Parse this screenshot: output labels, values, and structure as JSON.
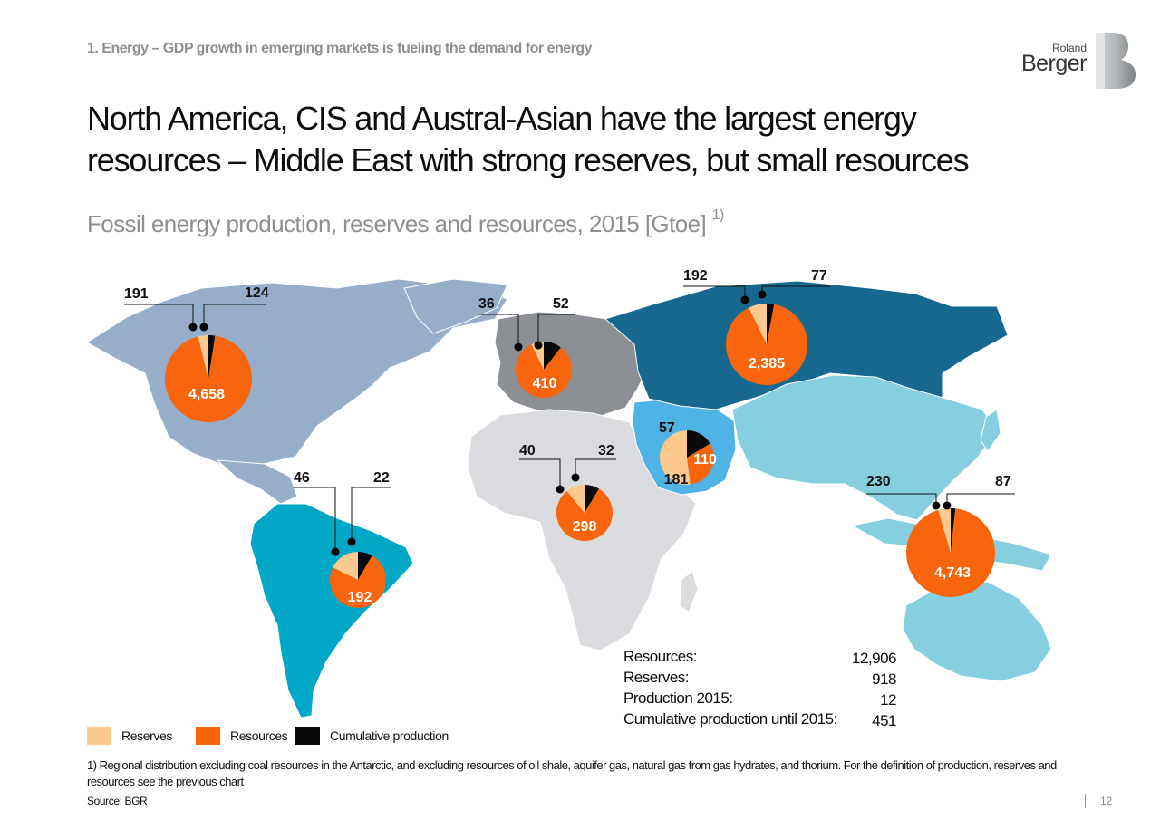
{
  "header": {
    "breadcrumb": "1. Energy – GDP growth in emerging markets is fueling the demand for energy",
    "logo": {
      "line1": "Roland",
      "line2": "Berger"
    },
    "title_line1": "North America, CIS and Austral-Asian have the largest energy",
    "title_line2": "resources – Middle East with strong reserves, but small resources",
    "subtitle": "Fossil energy production, reserves and resources, 2015 [Gtoe]",
    "subtitle_note": "1)"
  },
  "colors": {
    "reserves": "#FBC88D",
    "resources": "#F9650D",
    "cumulative": "#0A0A0A",
    "north_america": "#97AECB",
    "latin_america": "#00A7C6",
    "europe": "#8C8F94",
    "africa": "#D9DBDE",
    "middle_east": "#4FB3E6",
    "cis": "#16688F",
    "austral_asia": "#86CFE1"
  },
  "chart_data": {
    "type": "pie",
    "unit": "Gtoe",
    "series_names": [
      "Reserves",
      "Resources",
      "Cumulative production"
    ],
    "regions": [
      {
        "id": "north-america",
        "reserves": 191,
        "resources": 4658,
        "cumulative": 124
      },
      {
        "id": "latin-america",
        "reserves": 46,
        "resources": 192,
        "cumulative": 22
      },
      {
        "id": "europe",
        "reserves": 36,
        "resources": 410,
        "cumulative": 52
      },
      {
        "id": "africa",
        "reserves": 40,
        "resources": 298,
        "cumulative": 32
      },
      {
        "id": "middle-east",
        "reserves": 181,
        "resources": 110,
        "cumulative": 57
      },
      {
        "id": "cis",
        "reserves": 192,
        "resources": 2385,
        "cumulative": 77
      },
      {
        "id": "austral-asia",
        "reserves": 230,
        "resources": 4743,
        "cumulative": 87
      }
    ]
  },
  "legend": {
    "reserves": "Reserves",
    "resources": "Resources",
    "cumulative": "Cumulative production"
  },
  "totals": {
    "resources_label": "Resources:",
    "resources_value": "12,906",
    "reserves_label": "Reserves:",
    "reserves_value": "918",
    "production_label": "Production 2015:",
    "production_value": "12",
    "cumulative_label": "Cumulative production until 2015:",
    "cumulative_value": "451"
  },
  "footnote": "1) Regional distribution excluding coal resources in the Antarctic, and excluding resources of oil shale, aquifer gas, natural gas from gas hydrates, and thorium. For the definition of production, reserves and resources see the previous chart",
  "source": "Source: BGR",
  "page_number": "12"
}
